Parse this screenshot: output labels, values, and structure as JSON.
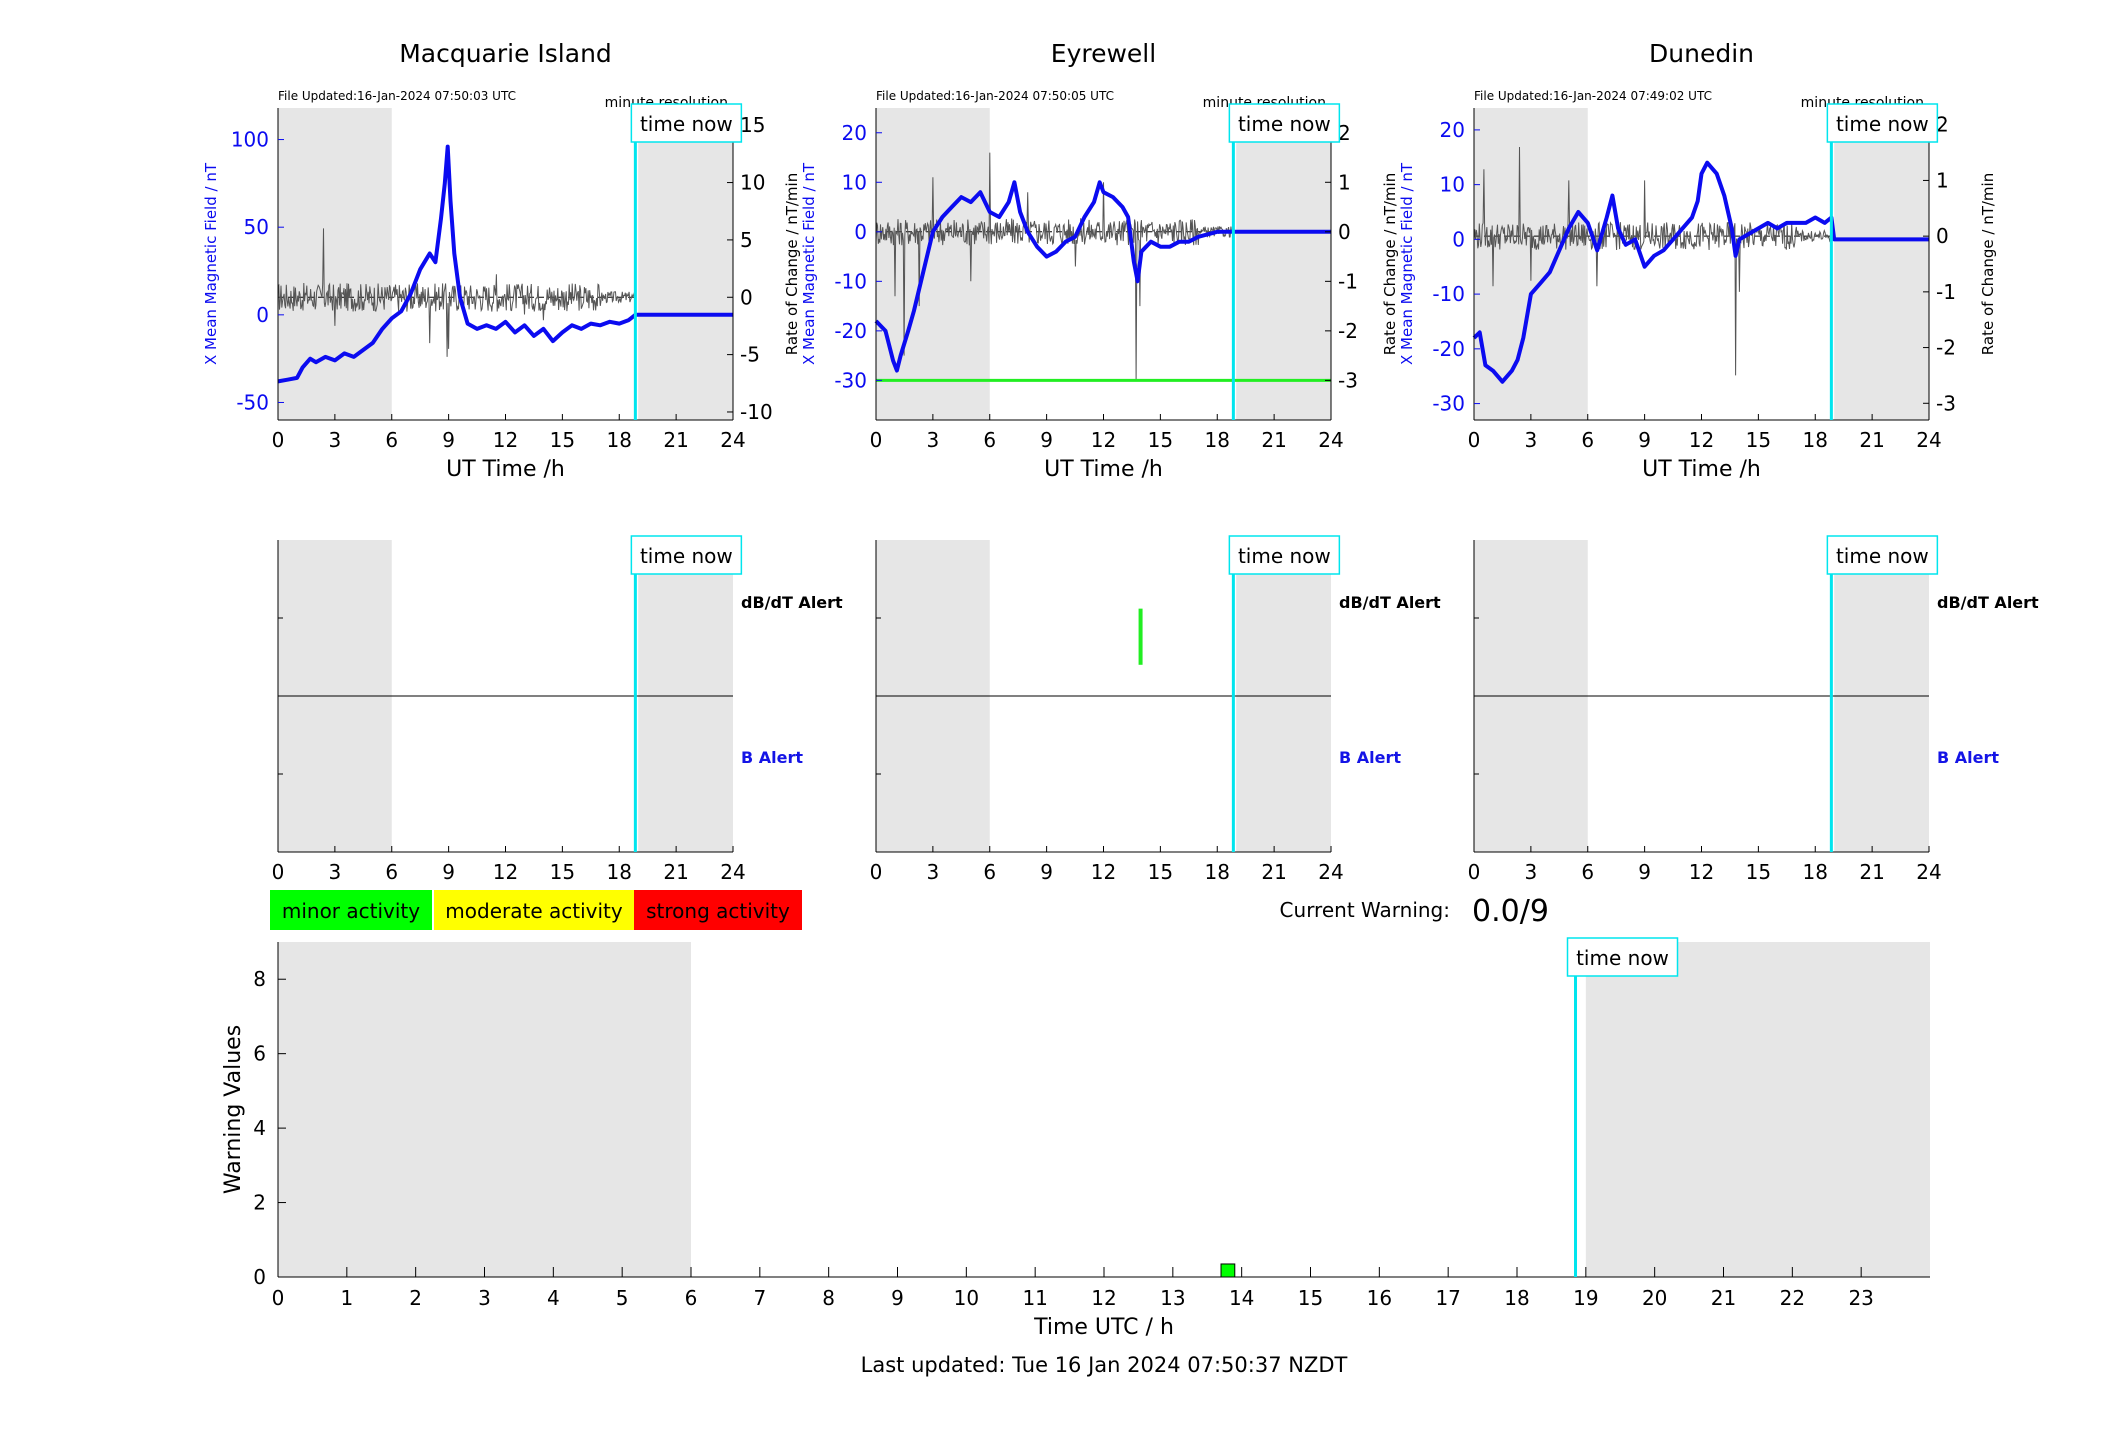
{
  "colors": {
    "field_line": "#0b0bf0",
    "rate_line": "#555555",
    "grey_band": "#e6e6e6",
    "time_now": "#00e5ee",
    "minor": "#00ff00",
    "moderate": "#ffff00",
    "strong": "#ff0000",
    "alert_blue": "#1414e6",
    "threshold_green": "#22ee22"
  },
  "common": {
    "x_ticks": [
      0,
      3,
      6,
      9,
      12,
      15,
      18,
      21,
      24
    ],
    "x_label": "UT Time /h",
    "time_now_label": "time now",
    "time_now_hour": 18.85,
    "grey_bands": [
      [
        0,
        6
      ],
      [
        19,
        24
      ]
    ],
    "minute_resolution": "minute resolution",
    "left_axis_label": "X Mean Magnetic Field / nT",
    "right_axis_label": "Rate of Change / nT/min",
    "dbdt_alert": "dB/dT Alert",
    "b_alert": "B Alert"
  },
  "stations": [
    {
      "name": "Macquarie Island",
      "file_updated": "File Updated:16-Jan-2024 07:50:03 UTC",
      "left_ylim": [
        -60,
        118
      ],
      "left_ticks": [
        -50,
        0,
        50,
        100
      ],
      "right_ylim": [
        -10.7,
        16.5
      ],
      "right_ticks": [
        -10,
        -5,
        0,
        5,
        10,
        15
      ],
      "field_points": [
        [
          0,
          -38
        ],
        [
          0.5,
          -37
        ],
        [
          1,
          -36
        ],
        [
          1.3,
          -30
        ],
        [
          1.7,
          -25
        ],
        [
          2,
          -27
        ],
        [
          2.5,
          -24
        ],
        [
          3,
          -26
        ],
        [
          3.5,
          -22
        ],
        [
          4,
          -24
        ],
        [
          4.5,
          -20
        ],
        [
          5,
          -16
        ],
        [
          5.5,
          -8
        ],
        [
          6,
          -2
        ],
        [
          6.5,
          2
        ],
        [
          7,
          12
        ],
        [
          7.5,
          26
        ],
        [
          8,
          35
        ],
        [
          8.3,
          30
        ],
        [
          8.6,
          55
        ],
        [
          8.8,
          75
        ],
        [
          8.95,
          96
        ],
        [
          9.1,
          65
        ],
        [
          9.3,
          35
        ],
        [
          9.6,
          10
        ],
        [
          10,
          -5
        ],
        [
          10.5,
          -8
        ],
        [
          11,
          -6
        ],
        [
          11.5,
          -8
        ],
        [
          12,
          -4
        ],
        [
          12.5,
          -10
        ],
        [
          13,
          -6
        ],
        [
          13.5,
          -12
        ],
        [
          14,
          -8
        ],
        [
          14.5,
          -15
        ],
        [
          15,
          -10
        ],
        [
          15.5,
          -6
        ],
        [
          16,
          -8
        ],
        [
          16.5,
          -5
        ],
        [
          17,
          -6
        ],
        [
          17.5,
          -4
        ],
        [
          18,
          -5
        ],
        [
          18.5,
          -3
        ],
        [
          18.85,
          0
        ],
        [
          24,
          0
        ]
      ],
      "rate_noise_amp": 2.5,
      "rate_spikes": [
        [
          2.4,
          6
        ],
        [
          3,
          -2.5
        ],
        [
          8,
          -4
        ],
        [
          8.9,
          -5.2
        ],
        [
          9,
          -4.5
        ],
        [
          11.5,
          2
        ],
        [
          13,
          -1.5
        ],
        [
          14,
          -2
        ],
        [
          16,
          -1
        ]
      ],
      "alert_marks": []
    },
    {
      "name": "Eyrewell",
      "file_updated": "File Updated:16-Jan-2024 07:50:05 UTC",
      "left_ylim": [
        -38,
        25
      ],
      "left_ticks": [
        -30,
        -20,
        -10,
        0,
        10,
        20
      ],
      "right_ylim": [
        -3.8,
        2.5
      ],
      "right_ticks": [
        -3,
        -2,
        -1,
        0,
        1,
        2
      ],
      "threshold_right": -3,
      "field_points": [
        [
          0,
          -18
        ],
        [
          0.5,
          -20
        ],
        [
          0.9,
          -26
        ],
        [
          1.1,
          -28
        ],
        [
          1.3,
          -25
        ],
        [
          1.7,
          -20
        ],
        [
          2,
          -16
        ],
        [
          2.5,
          -8
        ],
        [
          3,
          0
        ],
        [
          3.5,
          3
        ],
        [
          4,
          5
        ],
        [
          4.5,
          7
        ],
        [
          5,
          6
        ],
        [
          5.5,
          8
        ],
        [
          6,
          4
        ],
        [
          6.5,
          3
        ],
        [
          7,
          6
        ],
        [
          7.3,
          10
        ],
        [
          7.6,
          4
        ],
        [
          8,
          0
        ],
        [
          8.5,
          -3
        ],
        [
          9,
          -5
        ],
        [
          9.5,
          -4
        ],
        [
          10,
          -2
        ],
        [
          10.5,
          -1
        ],
        [
          11,
          3
        ],
        [
          11.5,
          6
        ],
        [
          11.8,
          10
        ],
        [
          12,
          8
        ],
        [
          12.5,
          7
        ],
        [
          13,
          5
        ],
        [
          13.3,
          3
        ],
        [
          13.6,
          -6
        ],
        [
          13.8,
          -10
        ],
        [
          14,
          -4
        ],
        [
          14.5,
          -2
        ],
        [
          15,
          -3
        ],
        [
          15.5,
          -3
        ],
        [
          16,
          -2
        ],
        [
          16.5,
          -2
        ],
        [
          17,
          -1
        ],
        [
          17.5,
          -0.5
        ],
        [
          18,
          0
        ],
        [
          18.85,
          0
        ],
        [
          24,
          0
        ]
      ],
      "rate_noise_amp": 0.55,
      "rate_spikes": [
        [
          1,
          -1.3
        ],
        [
          1.5,
          -2.5
        ],
        [
          2.3,
          -1.5
        ],
        [
          3,
          1.1
        ],
        [
          5,
          -1
        ],
        [
          6,
          1.6
        ],
        [
          8,
          0.8
        ],
        [
          10.5,
          -0.7
        ],
        [
          12,
          1
        ],
        [
          13.7,
          -3
        ],
        [
          13.9,
          -1.5
        ]
      ],
      "alert_marks": [
        [
          13.85,
          13.95,
          0.6,
          0.78
        ]
      ]
    },
    {
      "name": "Dunedin",
      "file_updated": "File Updated:16-Jan-2024 07:49:02 UTC",
      "left_ylim": [
        -33,
        24
      ],
      "left_ticks": [
        -30,
        -20,
        -10,
        0,
        10,
        20
      ],
      "right_ylim": [
        -3.3,
        2.3
      ],
      "right_ticks": [
        -3,
        -2,
        -1,
        0,
        1,
        2
      ],
      "field_points": [
        [
          0,
          -18
        ],
        [
          0.3,
          -17
        ],
        [
          0.6,
          -23
        ],
        [
          1,
          -24
        ],
        [
          1.5,
          -26
        ],
        [
          2,
          -24
        ],
        [
          2.3,
          -22
        ],
        [
          2.6,
          -18
        ],
        [
          3,
          -10
        ],
        [
          3.5,
          -8
        ],
        [
          4,
          -6
        ],
        [
          4.5,
          -2
        ],
        [
          5,
          2
        ],
        [
          5.5,
          5
        ],
        [
          6,
          3
        ],
        [
          6.5,
          -2
        ],
        [
          7,
          4
        ],
        [
          7.3,
          8
        ],
        [
          7.6,
          2
        ],
        [
          8,
          -1
        ],
        [
          8.5,
          0
        ],
        [
          9,
          -5
        ],
        [
          9.5,
          -3
        ],
        [
          10,
          -2
        ],
        [
          10.5,
          0
        ],
        [
          11,
          2
        ],
        [
          11.5,
          4
        ],
        [
          11.8,
          7
        ],
        [
          12,
          12
        ],
        [
          12.3,
          14
        ],
        [
          12.8,
          12
        ],
        [
          13.2,
          8
        ],
        [
          13.6,
          2
        ],
        [
          13.8,
          -3
        ],
        [
          14,
          0
        ],
        [
          14.5,
          1
        ],
        [
          15,
          2
        ],
        [
          15.5,
          3
        ],
        [
          16,
          2
        ],
        [
          16.5,
          3
        ],
        [
          17,
          3
        ],
        [
          17.5,
          3
        ],
        [
          18,
          4
        ],
        [
          18.5,
          3
        ],
        [
          18.85,
          4
        ],
        [
          19,
          0
        ],
        [
          24,
          0
        ]
      ],
      "rate_noise_amp": 0.5,
      "rate_spikes": [
        [
          0.5,
          1.2
        ],
        [
          1,
          -0.9
        ],
        [
          2.4,
          1.6
        ],
        [
          3,
          -0.8
        ],
        [
          5,
          1
        ],
        [
          6.5,
          -0.9
        ],
        [
          9,
          1
        ],
        [
          13.8,
          -2.5
        ],
        [
          14,
          -1
        ]
      ],
      "alert_marks": []
    }
  ],
  "legend": {
    "minor": "minor activity",
    "moderate": "moderate activity",
    "strong": "strong activity"
  },
  "current_warning": {
    "label": "Current Warning:",
    "value": "0.0/9"
  },
  "chart_data": {
    "type": "bar",
    "xlabel": "Time UTC / h",
    "ylabel": "Warning Values",
    "x_ticks": [
      0,
      1,
      2,
      3,
      4,
      5,
      6,
      7,
      8,
      9,
      10,
      11,
      12,
      13,
      14,
      15,
      16,
      17,
      18,
      19,
      20,
      21,
      22,
      23
    ],
    "xlim": [
      0,
      24
    ],
    "ylim": [
      0,
      9
    ],
    "y_ticks": [
      0,
      2,
      4,
      6,
      8
    ],
    "grey_bands": [
      [
        0,
        6
      ],
      [
        19,
        24
      ]
    ],
    "time_now_hour": 18.85,
    "bars": [
      {
        "x_start": 13.7,
        "x_end": 13.9,
        "value": 0.35,
        "level": "minor"
      }
    ]
  },
  "footer": "Last updated: Tue 16 Jan 2024 07:50:37 NZDT"
}
